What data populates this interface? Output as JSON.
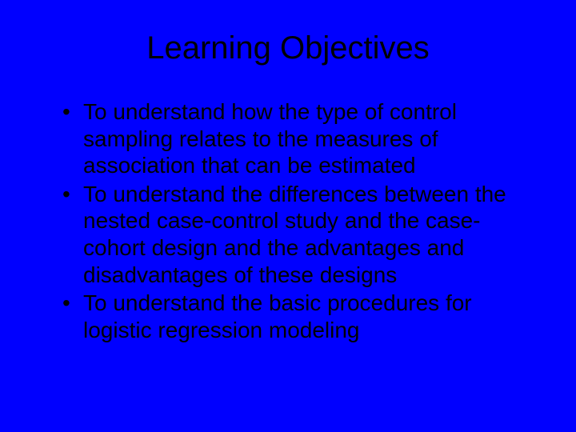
{
  "slide": {
    "background_color": "#0000ff",
    "text_color": "#000000",
    "font_family": "Arial",
    "title": {
      "text": "Learning Objectives",
      "fontsize": 40,
      "align": "center"
    },
    "bullets": [
      "To understand how the type of control sampling relates to the measures of association that can be estimated",
      "To understand the differences between the nested case-control study and the case-cohort design and the advantages and disadvantages of these designs",
      "To understand the basic procedures for logistic regression modeling"
    ],
    "bullet_fontsize": 28,
    "bullet_marker": "•"
  }
}
